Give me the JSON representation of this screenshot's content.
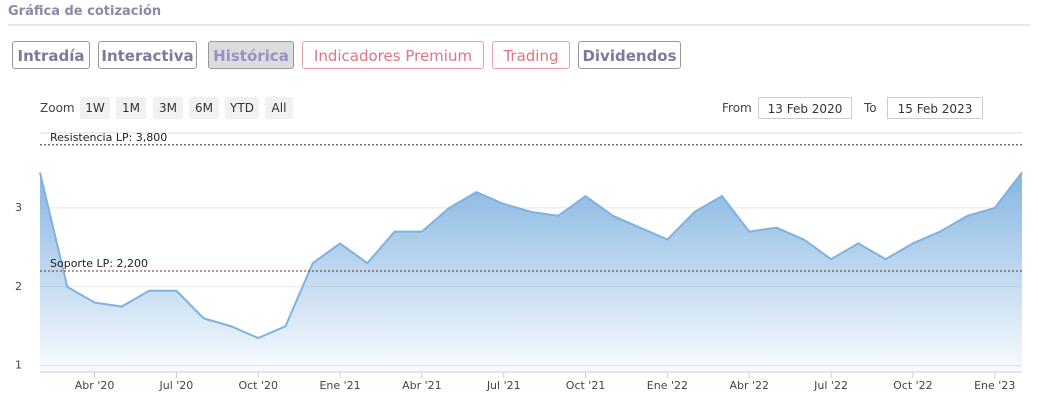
{
  "ui": {
    "title": "Gráfica de cotización",
    "tabs": [
      "Intradía",
      "Interactiva",
      "Histórica",
      "Indicadores Premium",
      "Trading",
      "Dividendos"
    ],
    "zoom_label": "Zoom",
    "zoom_buttons": [
      "1W",
      "1M",
      "3M",
      "6M",
      "YTD",
      "All"
    ],
    "from_label": "From",
    "from_date": "13 Feb 2020",
    "to_label": "To",
    "to_date": "15 Feb 2023"
  },
  "chart_data": {
    "type": "area",
    "color": "#7fb2e0",
    "x": [
      "2020-02",
      "2020-03",
      "2020-04",
      "2020-05",
      "2020-06",
      "2020-07",
      "2020-08",
      "2020-09",
      "2020-10",
      "2020-11",
      "2020-12",
      "2021-01",
      "2021-02",
      "2021-03",
      "2021-04",
      "2021-05",
      "2021-06",
      "2021-07",
      "2021-08",
      "2021-09",
      "2021-10",
      "2021-11",
      "2021-12",
      "2022-01",
      "2022-02",
      "2022-03",
      "2022-04",
      "2022-05",
      "2022-06",
      "2022-07",
      "2022-08",
      "2022-09",
      "2022-10",
      "2022-11",
      "2022-12",
      "2023-01",
      "2023-02"
    ],
    "values": [
      3.45,
      2.0,
      1.8,
      1.75,
      1.95,
      1.95,
      1.6,
      1.5,
      1.35,
      1.5,
      2.3,
      2.55,
      2.3,
      2.7,
      2.7,
      3.0,
      3.2,
      3.05,
      2.95,
      2.9,
      3.15,
      2.9,
      2.75,
      2.6,
      2.95,
      3.15,
      2.7,
      2.75,
      2.6,
      2.35,
      2.55,
      2.35,
      2.55,
      2.7,
      2.9,
      3.0,
      3.45
    ],
    "xlim": [
      "2020-02",
      "2023-02"
    ],
    "xticks": [
      {
        "value": "2020-04",
        "label": "Abr '20"
      },
      {
        "value": "2020-07",
        "label": "Jul '20"
      },
      {
        "value": "2020-10",
        "label": "Oct '20"
      },
      {
        "value": "2021-01",
        "label": "Ene '21"
      },
      {
        "value": "2021-04",
        "label": "Abr '21"
      },
      {
        "value": "2021-07",
        "label": "Jul '21"
      },
      {
        "value": "2021-10",
        "label": "Oct '21"
      },
      {
        "value": "2022-01",
        "label": "Ene '22"
      },
      {
        "value": "2022-04",
        "label": "Abr '22"
      },
      {
        "value": "2022-07",
        "label": "Jul '22"
      },
      {
        "value": "2022-10",
        "label": "Oct '22"
      },
      {
        "value": "2023-01",
        "label": "Ene '23"
      }
    ],
    "ylim": [
      0.92,
      3.95
    ],
    "yticks": [
      1,
      2,
      3
    ],
    "grid": true,
    "annotations": [
      {
        "value": 3.8,
        "label": "Resistencia LP: 3,800"
      },
      {
        "value": 2.2,
        "label": "Soporte LP: 2,200"
      }
    ]
  }
}
